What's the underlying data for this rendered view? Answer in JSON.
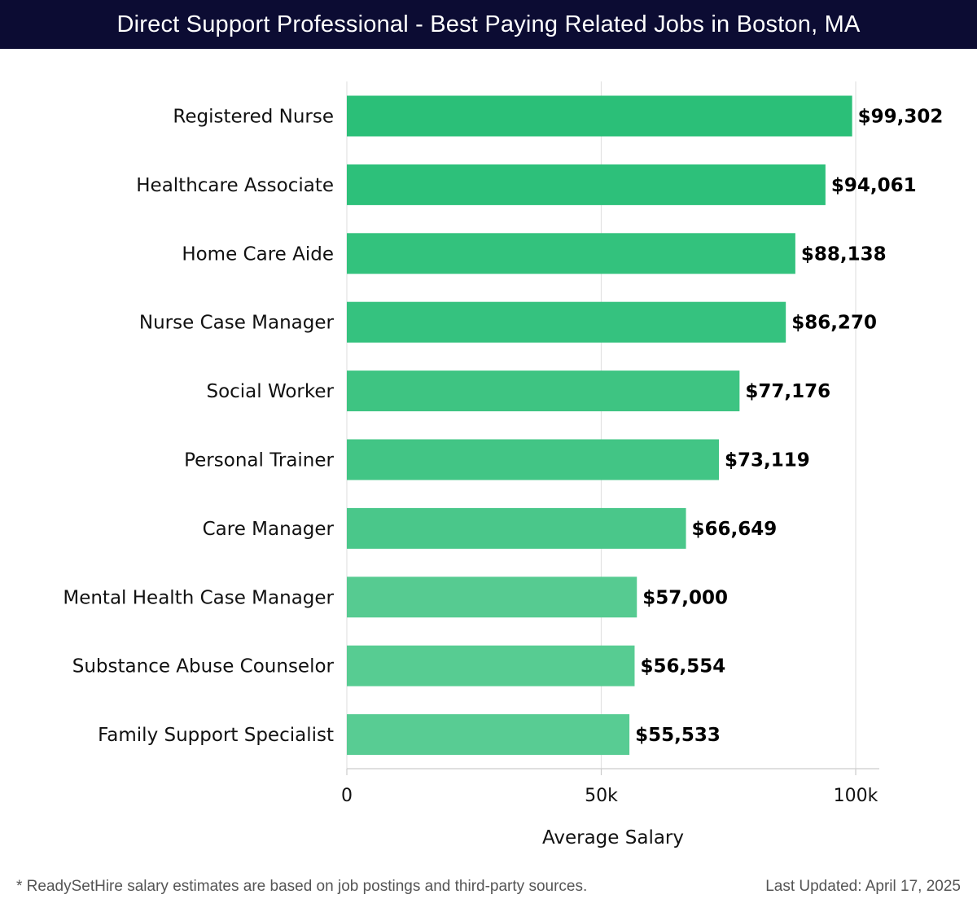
{
  "header": {
    "title": "Direct Support Professional - Best Paying Related Jobs in Boston, MA"
  },
  "chart_data": {
    "type": "bar",
    "orientation": "horizontal",
    "title": "Direct Support Professional - Best Paying Related Jobs in Boston, MA",
    "xlabel": "Average Salary",
    "ylabel": "",
    "xlim": [
      0,
      100000
    ],
    "xticks": [
      {
        "value": 0,
        "label": "0"
      },
      {
        "value": 50000,
        "label": "50k"
      },
      {
        "value": 100000,
        "label": "100k"
      }
    ],
    "grid": true,
    "categories": [
      "Registered Nurse",
      "Healthcare Associate",
      "Home Care Aide",
      "Nurse Case Manager",
      "Social Worker",
      "Personal Trainer",
      "Care Manager",
      "Mental Health Case Manager",
      "Substance Abuse Counselor",
      "Family Support Specialist"
    ],
    "values": [
      99302,
      94061,
      88138,
      86270,
      77176,
      73119,
      66649,
      57000,
      56554,
      55533
    ],
    "value_labels": [
      "$99,302",
      "$94,061",
      "$88,138",
      "$86,270",
      "$77,176",
      "$73,119",
      "$66,649",
      "$57,000",
      "$56,554",
      "$55,533"
    ],
    "colors": [
      "#2bbf78",
      "#2dc07a",
      "#33c27d",
      "#35c27f",
      "#3ec482",
      "#42c585",
      "#4ac78a",
      "#56cb91",
      "#57cc92",
      "#58cc93"
    ]
  },
  "footer": {
    "note": "* ReadySetHire salary estimates are based on job postings and third-party sources.",
    "updated": "Last Updated: April 17, 2025"
  }
}
